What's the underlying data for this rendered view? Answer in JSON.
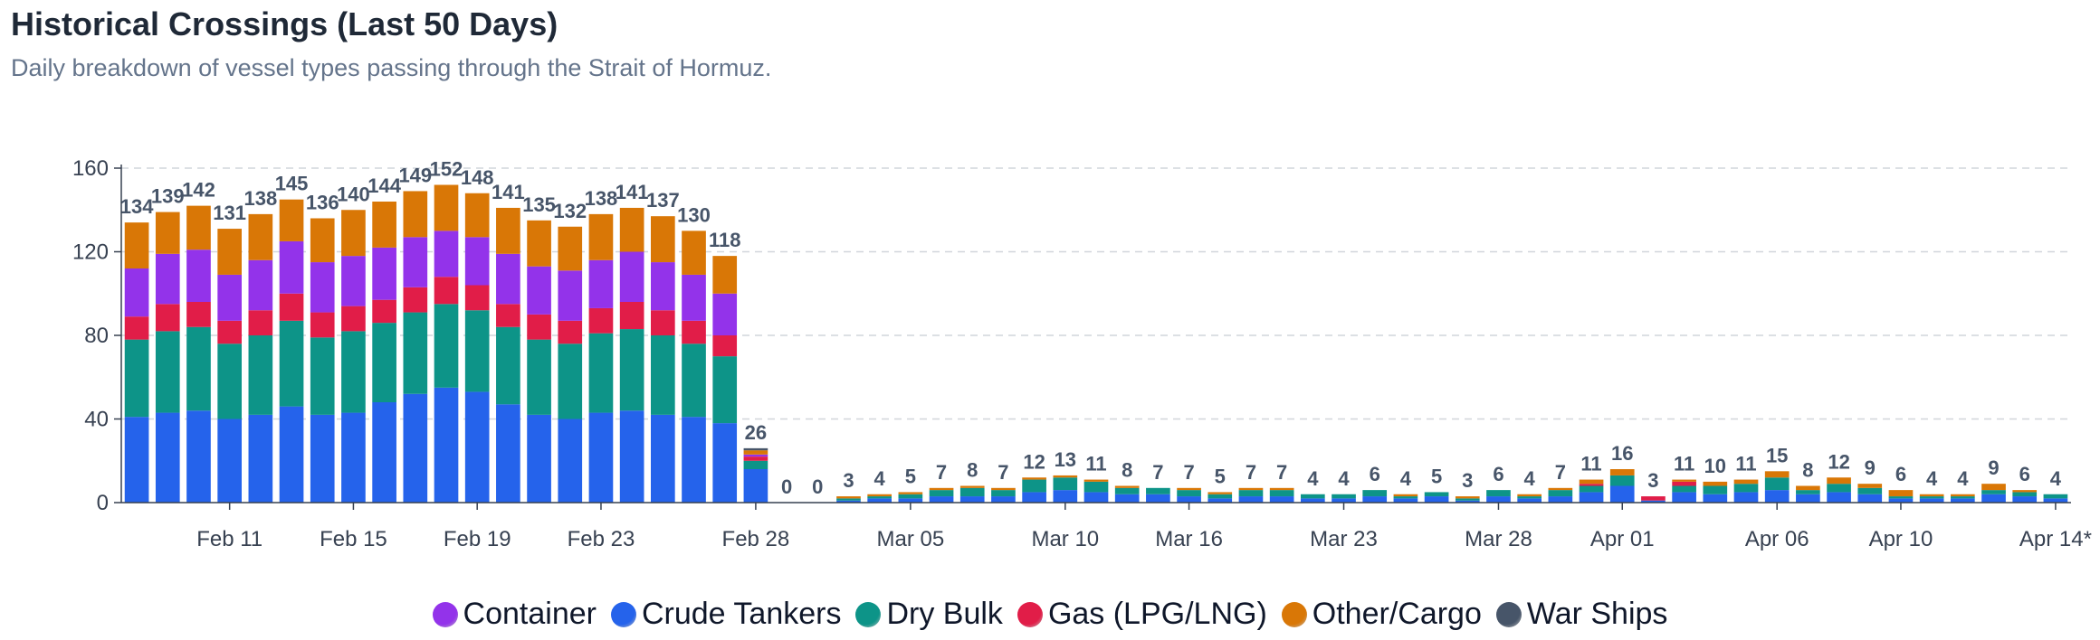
{
  "chart_data": {
    "type": "bar",
    "stacked": true,
    "title": "Historical Crossings (Last 50 Days)",
    "subtitle": "Daily breakdown of vessel types passing through the Strait of Hormuz.",
    "ylim": [
      0,
      160
    ],
    "yticks": [
      0,
      40,
      80,
      120,
      160
    ],
    "grid": true,
    "legend_position": "bottom",
    "x_tick_labels": [
      {
        "index": 3,
        "label": "Feb 11"
      },
      {
        "index": 7,
        "label": "Feb 15"
      },
      {
        "index": 11,
        "label": "Feb 19"
      },
      {
        "index": 15,
        "label": "Feb 23"
      },
      {
        "index": 20,
        "label": "Feb 28"
      },
      {
        "index": 25,
        "label": "Mar 05"
      },
      {
        "index": 30,
        "label": "Mar 10"
      },
      {
        "index": 34,
        "label": "Mar 16"
      },
      {
        "index": 39,
        "label": "Mar 23"
      },
      {
        "index": 44,
        "label": "Mar 28"
      },
      {
        "index": 48,
        "label": "Apr 01"
      },
      {
        "index": 53,
        "label": "Apr 06"
      },
      {
        "index": 57,
        "label": "Apr 10"
      },
      {
        "index": 62,
        "label": "Apr 14*"
      }
    ],
    "totals": [
      134,
      139,
      142,
      131,
      138,
      145,
      136,
      140,
      144,
      149,
      152,
      148,
      141,
      135,
      132,
      138,
      141,
      137,
      130,
      118,
      26,
      0,
      0,
      3,
      4,
      5,
      7,
      8,
      7,
      12,
      13,
      11,
      8,
      7,
      7,
      5,
      7,
      7,
      4,
      4,
      6,
      4,
      5,
      3,
      6,
      4,
      7,
      11,
      16,
      3,
      11,
      10,
      11,
      15,
      8,
      12,
      9,
      6,
      4,
      4,
      9,
      6,
      4
    ],
    "series": [
      {
        "name": "Crude Tankers",
        "color": "#2563eb",
        "values": [
          41,
          43,
          44,
          40,
          42,
          46,
          42,
          43,
          48,
          52,
          55,
          53,
          47,
          42,
          40,
          43,
          44,
          42,
          41,
          38,
          16,
          0,
          0,
          1,
          2,
          2,
          3,
          3,
          3,
          5,
          6,
          5,
          4,
          4,
          3,
          2,
          3,
          3,
          2,
          2,
          3,
          2,
          3,
          1,
          3,
          2,
          3,
          5,
          8,
          1,
          5,
          4,
          5,
          6,
          4,
          5,
          4,
          2,
          2,
          2,
          4,
          3,
          2
        ]
      },
      {
        "name": "Dry Bulk",
        "color": "#0d9488",
        "values": [
          37,
          39,
          40,
          36,
          38,
          41,
          37,
          39,
          38,
          39,
          40,
          39,
          37,
          36,
          36,
          38,
          39,
          38,
          35,
          32,
          4,
          0,
          0,
          1,
          1,
          2,
          3,
          4,
          3,
          6,
          6,
          5,
          3,
          3,
          3,
          2,
          3,
          3,
          2,
          2,
          3,
          1,
          2,
          1,
          3,
          1,
          3,
          3,
          5,
          0,
          3,
          4,
          4,
          6,
          2,
          4,
          3,
          1,
          1,
          1,
          2,
          2,
          2
        ]
      },
      {
        "name": "Gas (LPG/LNG)",
        "color": "#e11d48",
        "values": [
          11,
          13,
          12,
          11,
          12,
          13,
          12,
          12,
          11,
          12,
          13,
          12,
          11,
          12,
          11,
          12,
          13,
          12,
          11,
          10,
          2,
          0,
          0,
          0,
          0,
          0,
          0,
          0,
          0,
          0,
          0,
          0,
          0,
          0,
          0,
          0,
          0,
          0,
          0,
          0,
          0,
          0,
          0,
          0,
          0,
          0,
          0,
          1,
          0,
          2,
          2,
          0,
          0,
          0,
          0,
          0,
          0,
          0,
          0,
          0,
          0,
          0,
          0
        ]
      },
      {
        "name": "Container",
        "color": "#9333ea",
        "values": [
          23,
          24,
          25,
          22,
          24,
          25,
          24,
          24,
          25,
          24,
          22,
          23,
          24,
          23,
          24,
          23,
          24,
          23,
          22,
          20,
          1,
          0,
          0,
          0,
          0,
          0,
          0,
          0,
          0,
          0,
          0,
          0,
          0,
          0,
          0,
          0,
          0,
          0,
          0,
          0,
          0,
          0,
          0,
          0,
          0,
          0,
          0,
          0,
          0,
          0,
          0,
          0,
          0,
          0,
          0,
          0,
          0,
          0,
          0,
          0,
          0,
          0,
          0
        ]
      },
      {
        "name": "Other/Cargo",
        "color": "#d97706",
        "values": [
          22,
          20,
          21,
          22,
          22,
          20,
          21,
          22,
          22,
          22,
          22,
          21,
          22,
          22,
          21,
          22,
          21,
          22,
          21,
          18,
          2,
          0,
          0,
          1,
          1,
          1,
          1,
          1,
          1,
          1,
          1,
          1,
          1,
          0,
          1,
          1,
          1,
          1,
          0,
          0,
          0,
          1,
          0,
          1,
          0,
          1,
          1,
          2,
          3,
          0,
          1,
          2,
          2,
          3,
          2,
          3,
          2,
          3,
          1,
          1,
          3,
          1,
          0
        ]
      },
      {
        "name": "War Ships",
        "color": "#475569",
        "values": [
          0,
          0,
          0,
          0,
          0,
          0,
          0,
          0,
          0,
          0,
          0,
          0,
          0,
          0,
          0,
          0,
          0,
          0,
          0,
          0,
          1,
          0,
          0,
          0,
          0,
          0,
          0,
          0,
          0,
          0,
          0,
          0,
          0,
          0,
          0,
          0,
          0,
          0,
          0,
          0,
          0,
          0,
          0,
          0,
          0,
          0,
          0,
          0,
          0,
          0,
          0,
          0,
          0,
          0,
          0,
          0,
          0,
          0,
          0,
          0,
          0,
          0,
          0
        ]
      }
    ],
    "legend": [
      {
        "name": "Container",
        "color": "#9333ea"
      },
      {
        "name": "Crude Tankers",
        "color": "#2563eb"
      },
      {
        "name": "Dry Bulk",
        "color": "#0d9488"
      },
      {
        "name": "Gas (LPG/LNG)",
        "color": "#e11d48"
      },
      {
        "name": "Other/Cargo",
        "color": "#d97706"
      },
      {
        "name": "War Ships",
        "color": "#475569"
      }
    ]
  }
}
